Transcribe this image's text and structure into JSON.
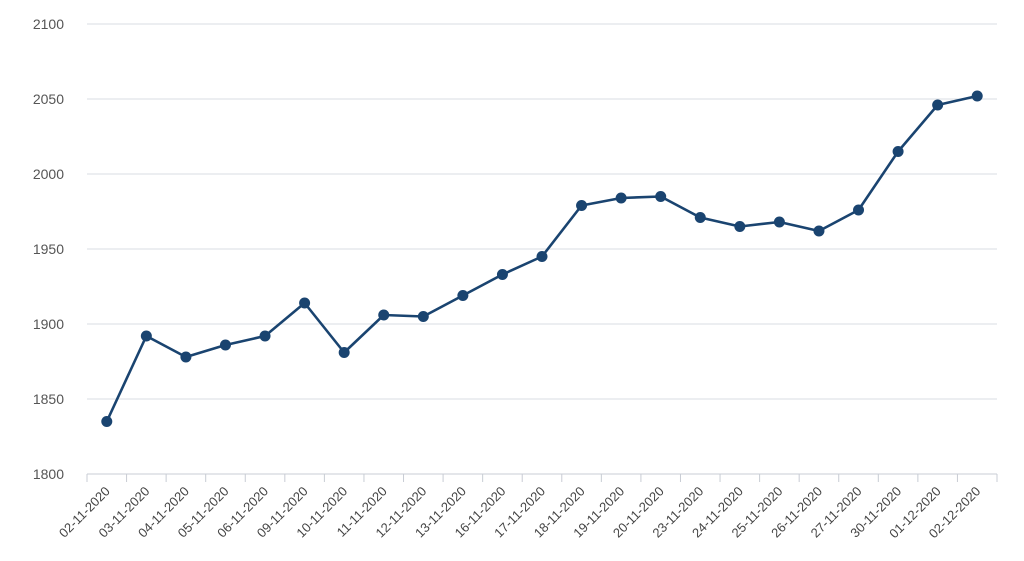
{
  "chart_data": {
    "type": "line",
    "title": "",
    "xlabel": "",
    "ylabel": "",
    "ylim": [
      1800,
      2100
    ],
    "yticks": [
      1800,
      1850,
      1900,
      1950,
      2000,
      2050,
      2100
    ],
    "grid": true,
    "legend": "none",
    "categories": [
      "02-11-2020",
      "03-11-2020",
      "04-11-2020",
      "05-11-2020",
      "06-11-2020",
      "09-11-2020",
      "10-11-2020",
      "11-11-2020",
      "12-11-2020",
      "13-11-2020",
      "16-11-2020",
      "17-11-2020",
      "18-11-2020",
      "19-11-2020",
      "20-11-2020",
      "23-11-2020",
      "24-11-2020",
      "25-11-2020",
      "26-11-2020",
      "27-11-2020",
      "30-11-2020",
      "01-12-2020",
      "02-12-2020"
    ],
    "series": [
      {
        "values": [
          1835,
          1892,
          1878,
          1886,
          1892,
          1914,
          1881,
          1906,
          1905,
          1919,
          1933,
          1945,
          1979,
          1984,
          1985,
          1971,
          1965,
          1968,
          1962,
          1976,
          2015,
          2046,
          2052
        ],
        "color": "#1a4470"
      }
    ]
  }
}
